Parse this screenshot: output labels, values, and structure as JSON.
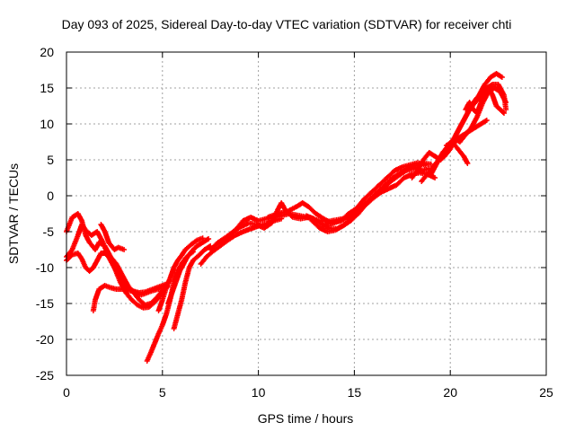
{
  "chart_data": {
    "type": "scatter",
    "title": "Day 093 of 2025, Sidereal Day-to-day VTEC variation (SDTVAR) for receiver chti",
    "xlabel": "GPS time / hours",
    "ylabel": "SDTVAR / TECUs",
    "xlim": [
      0,
      25
    ],
    "ylim": [
      -25,
      20
    ],
    "xticks": [
      0,
      5,
      10,
      15,
      20,
      25
    ],
    "yticks": [
      -25,
      -20,
      -15,
      -10,
      -5,
      0,
      5,
      10,
      15,
      20
    ],
    "grid": true,
    "marker": "plus",
    "color": "#ff0000",
    "series": [
      {
        "points": [
          [
            0.0,
            -5.0
          ],
          [
            0.3,
            -3.0
          ],
          [
            0.6,
            -2.5
          ],
          [
            0.8,
            -3.5
          ],
          [
            1.0,
            -5.5
          ],
          [
            1.2,
            -6.5
          ],
          [
            1.5,
            -7.5
          ],
          [
            1.7,
            -6.5
          ],
          [
            2.0,
            -7.0
          ],
          [
            2.3,
            -8.5
          ],
          [
            2.6,
            -9.5
          ],
          [
            2.9,
            -11.0
          ],
          [
            3.2,
            -12.5
          ],
          [
            3.5,
            -13.5
          ],
          [
            3.8,
            -14.5
          ],
          [
            4.1,
            -15.2
          ],
          [
            4.4,
            -15.0
          ],
          [
            4.7,
            -14.2
          ],
          [
            5.0,
            -13.2
          ]
        ]
      },
      {
        "points": [
          [
            0.0,
            -8.5
          ],
          [
            0.3,
            -7.5
          ],
          [
            0.6,
            -5.5
          ],
          [
            0.8,
            -4.0
          ],
          [
            1.0,
            -4.8
          ],
          [
            1.3,
            -5.5
          ],
          [
            1.6,
            -5.0
          ],
          [
            1.9,
            -6.5
          ],
          [
            2.2,
            -8.5
          ],
          [
            2.5,
            -10.0
          ],
          [
            2.8,
            -12.0
          ],
          [
            3.1,
            -13.5
          ],
          [
            3.4,
            -14.5
          ],
          [
            3.7,
            -15.2
          ],
          [
            4.0,
            -15.6
          ],
          [
            4.3,
            -15.5
          ],
          [
            4.6,
            -14.8
          ],
          [
            5.0,
            -13.6
          ]
        ]
      },
      {
        "points": [
          [
            0.0,
            -9.0
          ],
          [
            0.3,
            -8.2
          ],
          [
            0.6,
            -8.0
          ],
          [
            0.8,
            -8.8
          ],
          [
            1.0,
            -10.0
          ],
          [
            1.2,
            -10.5
          ],
          [
            1.4,
            -10.0
          ],
          [
            1.6,
            -9.0
          ],
          [
            1.8,
            -8.0
          ],
          [
            2.0,
            -8.0
          ],
          [
            2.2,
            -8.5
          ],
          [
            2.5,
            -10.0
          ],
          [
            2.8,
            -11.5
          ],
          [
            3.0,
            -12.5
          ],
          [
            3.3,
            -13.0
          ],
          [
            3.6,
            -13.5
          ],
          [
            3.9,
            -13.8
          ],
          [
            4.2,
            -13.5
          ],
          [
            4.5,
            -13.2
          ],
          [
            4.8,
            -13.0
          ],
          [
            5.1,
            -13.0
          ],
          [
            5.3,
            -12.6
          ]
        ]
      },
      {
        "points": [
          [
            1.4,
            -16.0
          ],
          [
            1.5,
            -14.5
          ],
          [
            1.7,
            -13.0
          ],
          [
            2.0,
            -12.5
          ],
          [
            2.3,
            -12.8
          ],
          [
            2.6,
            -13.0
          ],
          [
            2.9,
            -13.0
          ],
          [
            3.2,
            -13.2
          ],
          [
            3.5,
            -13.3
          ],
          [
            3.8,
            -13.5
          ],
          [
            4.1,
            -13.4
          ],
          [
            4.4,
            -13.1
          ],
          [
            4.7,
            -12.8
          ],
          [
            5.0,
            -12.5
          ],
          [
            5.3,
            -12.2
          ]
        ]
      },
      {
        "points": [
          [
            1.8,
            -4.0
          ],
          [
            2.0,
            -5.0
          ],
          [
            2.2,
            -6.5
          ],
          [
            2.5,
            -7.5
          ],
          [
            2.7,
            -7.2
          ],
          [
            3.0,
            -7.5
          ]
        ]
      },
      {
        "points": [
          [
            4.2,
            -23.0
          ],
          [
            4.4,
            -21.8
          ],
          [
            4.6,
            -20.5
          ],
          [
            4.8,
            -19.2
          ],
          [
            5.0,
            -18.0
          ],
          [
            5.2,
            -16.5
          ],
          [
            5.4,
            -14.5
          ],
          [
            5.6,
            -12.0
          ],
          [
            5.8,
            -10.5
          ],
          [
            6.0,
            -9.5
          ],
          [
            6.2,
            -8.7
          ],
          [
            6.4,
            -8.2
          ],
          [
            6.6,
            -7.8
          ]
        ]
      },
      {
        "points": [
          [
            4.8,
            -16.0
          ],
          [
            5.0,
            -14.5
          ],
          [
            5.2,
            -12.8
          ],
          [
            5.4,
            -11.5
          ],
          [
            5.6,
            -10.0
          ],
          [
            5.8,
            -9.0
          ],
          [
            6.0,
            -8.3
          ],
          [
            6.2,
            -7.5
          ],
          [
            6.5,
            -6.8
          ],
          [
            6.8,
            -6.2
          ],
          [
            7.1,
            -5.9
          ]
        ]
      },
      {
        "points": [
          [
            5.3,
            -15.0
          ],
          [
            5.5,
            -13.5
          ],
          [
            5.7,
            -12.0
          ],
          [
            5.9,
            -10.5
          ],
          [
            6.1,
            -9.5
          ],
          [
            6.3,
            -8.5
          ],
          [
            6.5,
            -7.8
          ],
          [
            6.8,
            -7.0
          ],
          [
            7.1,
            -6.5
          ],
          [
            7.4,
            -6.0
          ]
        ]
      },
      {
        "points": [
          [
            5.6,
            -18.5
          ],
          [
            5.8,
            -16.5
          ],
          [
            6.0,
            -14.5
          ],
          [
            6.2,
            -12.0
          ],
          [
            6.4,
            -10.0
          ],
          [
            6.6,
            -9.0
          ],
          [
            6.9,
            -8.3
          ],
          [
            7.2,
            -7.5
          ],
          [
            7.5,
            -7.0
          ]
        ]
      },
      {
        "points": [
          [
            7.0,
            -9.5
          ],
          [
            7.3,
            -8.5
          ],
          [
            7.6,
            -7.8
          ],
          [
            8.0,
            -7.0
          ],
          [
            8.4,
            -6.2
          ],
          [
            8.8,
            -5.5
          ],
          [
            9.2,
            -5.0
          ],
          [
            9.6,
            -4.6
          ],
          [
            10.0,
            -4.2
          ],
          [
            10.4,
            -3.9
          ],
          [
            10.8,
            -3.5
          ],
          [
            11.2,
            -3.2
          ]
        ]
      },
      {
        "points": [
          [
            7.5,
            -7.5
          ],
          [
            7.9,
            -6.5
          ],
          [
            8.3,
            -5.8
          ],
          [
            8.7,
            -5.0
          ],
          [
            9.1,
            -4.3
          ],
          [
            9.5,
            -3.8
          ],
          [
            9.9,
            -4.0
          ],
          [
            10.3,
            -4.5
          ],
          [
            10.7,
            -3.8
          ],
          [
            11.0,
            -2.0
          ],
          [
            11.2,
            -1.0
          ],
          [
            11.4,
            -2.0
          ],
          [
            11.8,
            -3.0
          ],
          [
            12.2,
            -3.2
          ],
          [
            12.6,
            -3.0
          ]
        ]
      },
      {
        "points": [
          [
            8.5,
            -5.5
          ],
          [
            8.9,
            -4.5
          ],
          [
            9.2,
            -3.5
          ],
          [
            9.6,
            -3.0
          ],
          [
            10.0,
            -3.5
          ],
          [
            10.4,
            -3.2
          ],
          [
            10.8,
            -3.0
          ],
          [
            11.2,
            -2.8
          ],
          [
            11.6,
            -2.5
          ],
          [
            12.0,
            -2.7
          ],
          [
            12.4,
            -2.9
          ],
          [
            12.8,
            -3.2
          ],
          [
            13.2,
            -3.5
          ],
          [
            13.6,
            -3.6
          ],
          [
            14.0,
            -3.4
          ],
          [
            14.4,
            -3.2
          ]
        ]
      },
      {
        "points": [
          [
            10.5,
            -3.0
          ],
          [
            11.0,
            -2.5
          ],
          [
            11.5,
            -2.2
          ],
          [
            12.0,
            -1.5
          ],
          [
            12.3,
            -1.0
          ],
          [
            12.6,
            -1.5
          ],
          [
            13.0,
            -2.5
          ],
          [
            13.4,
            -3.2
          ],
          [
            13.8,
            -3.8
          ],
          [
            14.2,
            -3.5
          ],
          [
            14.6,
            -3.2
          ],
          [
            15.0,
            -2.5
          ],
          [
            15.4,
            -1.5
          ],
          [
            15.8,
            -0.5
          ],
          [
            16.2,
            0.5
          ],
          [
            16.6,
            1.5
          ],
          [
            17.0,
            2.5
          ],
          [
            17.4,
            3.2
          ],
          [
            17.8,
            3.8
          ],
          [
            18.2,
            4.2
          ],
          [
            18.6,
            4.5
          ],
          [
            19.0,
            4.4
          ]
        ]
      },
      {
        "points": [
          [
            12.5,
            -2.8
          ],
          [
            12.9,
            -3.2
          ],
          [
            13.3,
            -4.0
          ],
          [
            13.7,
            -4.5
          ],
          [
            14.1,
            -4.6
          ],
          [
            14.5,
            -4.0
          ],
          [
            14.9,
            -3.0
          ],
          [
            15.3,
            -2.0
          ],
          [
            15.7,
            -1.0
          ],
          [
            16.1,
            0.0
          ],
          [
            16.5,
            1.0
          ],
          [
            16.9,
            2.0
          ],
          [
            17.3,
            2.8
          ],
          [
            17.7,
            3.5
          ],
          [
            18.1,
            3.8
          ],
          [
            18.5,
            3.5
          ],
          [
            18.9,
            3.8
          ]
        ]
      },
      {
        "points": [
          [
            12.8,
            -3.5
          ],
          [
            13.2,
            -4.5
          ],
          [
            13.6,
            -5.0
          ],
          [
            14.0,
            -4.8
          ],
          [
            14.4,
            -4.2
          ],
          [
            14.8,
            -3.5
          ],
          [
            15.2,
            -2.5
          ],
          [
            15.6,
            -1.2
          ],
          [
            16.0,
            -0.3
          ],
          [
            16.4,
            0.5
          ],
          [
            16.8,
            1.0
          ],
          [
            17.2,
            1.5
          ],
          [
            17.6,
            2.5
          ],
          [
            18.0,
            3.0
          ],
          [
            18.4,
            3.2
          ],
          [
            18.8,
            3.0
          ],
          [
            19.2,
            2.5
          ]
        ]
      },
      {
        "points": [
          [
            13.5,
            -4.0
          ],
          [
            13.9,
            -3.8
          ],
          [
            14.3,
            -3.5
          ],
          [
            14.7,
            -2.5
          ],
          [
            15.1,
            -1.8
          ],
          [
            15.5,
            -0.5
          ],
          [
            15.9,
            0.5
          ],
          [
            16.3,
            1.5
          ],
          [
            16.7,
            2.5
          ],
          [
            17.1,
            3.5
          ],
          [
            17.5,
            4.0
          ],
          [
            17.9,
            4.3
          ],
          [
            18.3,
            4.6
          ],
          [
            18.7,
            4.3
          ]
        ]
      },
      {
        "points": [
          [
            18.0,
            2.5
          ],
          [
            18.3,
            3.5
          ],
          [
            18.6,
            5.0
          ],
          [
            18.9,
            6.0
          ],
          [
            19.2,
            5.5
          ],
          [
            19.5,
            5.0
          ],
          [
            19.8,
            6.0
          ],
          [
            20.1,
            7.5
          ],
          [
            20.4,
            9.0
          ],
          [
            20.7,
            10.5
          ],
          [
            21.0,
            12.0
          ],
          [
            21.3,
            13.0
          ],
          [
            21.6,
            14.0
          ],
          [
            21.9,
            15.0
          ],
          [
            22.2,
            15.5
          ],
          [
            22.5,
            15.5
          ],
          [
            22.8,
            14.0
          ],
          [
            22.9,
            12.0
          ]
        ]
      },
      {
        "points": [
          [
            18.5,
            2.0
          ],
          [
            18.8,
            3.0
          ],
          [
            19.1,
            4.0
          ],
          [
            19.4,
            5.0
          ],
          [
            19.7,
            5.5
          ],
          [
            20.0,
            6.5
          ],
          [
            20.3,
            8.5
          ],
          [
            20.6,
            10.0
          ],
          [
            20.9,
            11.5
          ],
          [
            21.2,
            13.0
          ],
          [
            21.5,
            14.0
          ],
          [
            21.8,
            15.5
          ],
          [
            22.1,
            16.5
          ],
          [
            22.4,
            17.0
          ],
          [
            22.7,
            16.5
          ]
        ]
      },
      {
        "points": [
          [
            19.0,
            3.0
          ],
          [
            19.3,
            4.5
          ],
          [
            19.6,
            6.0
          ],
          [
            19.9,
            7.0
          ],
          [
            20.2,
            8.0
          ],
          [
            20.5,
            7.5
          ],
          [
            20.8,
            8.5
          ],
          [
            21.1,
            9.5
          ],
          [
            21.4,
            11.0
          ],
          [
            21.7,
            13.0
          ],
          [
            22.0,
            14.5
          ],
          [
            22.3,
            15.0
          ],
          [
            22.6,
            14.5
          ],
          [
            22.9,
            13.0
          ]
        ]
      },
      {
        "points": [
          [
            19.5,
            5.0
          ],
          [
            19.8,
            6.5
          ],
          [
            20.1,
            7.0
          ],
          [
            20.4,
            8.0
          ],
          [
            20.7,
            8.5
          ],
          [
            21.0,
            9.0
          ],
          [
            21.3,
            9.5
          ],
          [
            21.6,
            10.0
          ],
          [
            21.9,
            10.5
          ]
        ]
      },
      {
        "points": [
          [
            19.8,
            7.0
          ],
          [
            20.1,
            7.5
          ],
          [
            20.4,
            6.5
          ],
          [
            20.7,
            5.5
          ],
          [
            20.9,
            4.5
          ]
        ]
      },
      {
        "points": [
          [
            20.8,
            12.0
          ],
          [
            21.0,
            13.0
          ],
          [
            21.2,
            12.0
          ],
          [
            21.4,
            11.5
          ],
          [
            21.6,
            13.0
          ],
          [
            21.8,
            14.5
          ],
          [
            22.0,
            15.0
          ],
          [
            22.2,
            14.0
          ],
          [
            22.4,
            12.5
          ],
          [
            22.6,
            12.0
          ],
          [
            22.8,
            11.5
          ]
        ]
      }
    ]
  }
}
